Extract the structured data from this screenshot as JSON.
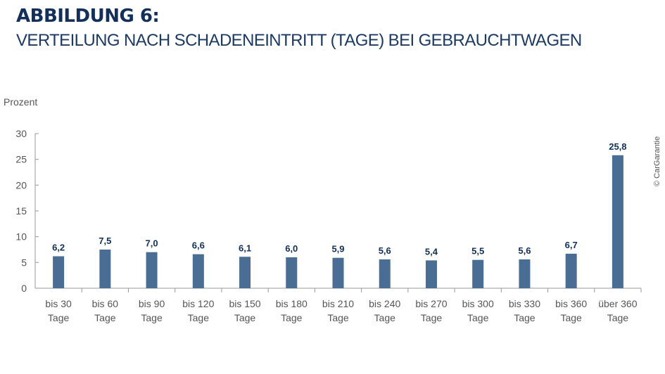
{
  "chart_data": {
    "type": "bar",
    "title": "ABBILDUNG 6:",
    "subtitle": "VERTEILUNG NACH SCHADENEINTRITT (TAGE) BEI GEBRAUCHTWAGEN",
    "ylabel": "Prozent",
    "xlabel": "",
    "ylim": [
      0,
      30
    ],
    "yticks": [
      0,
      5,
      10,
      15,
      20,
      25,
      30
    ],
    "grid": false,
    "categories": [
      [
        "bis 30",
        "Tage"
      ],
      [
        "bis 60",
        "Tage"
      ],
      [
        "bis 90",
        "Tage"
      ],
      [
        "bis 120",
        "Tage"
      ],
      [
        "bis 150",
        "Tage"
      ],
      [
        "bis 180",
        "Tage"
      ],
      [
        "bis 210",
        "Tage"
      ],
      [
        "bis 240",
        "Tage"
      ],
      [
        "bis 270",
        "Tage"
      ],
      [
        "bis 300",
        "Tage"
      ],
      [
        "bis 330",
        "Tage"
      ],
      [
        "bis 360",
        "Tage"
      ],
      [
        "über 360",
        "Tage"
      ]
    ],
    "values": [
      6.2,
      7.5,
      7.0,
      6.6,
      6.1,
      6.0,
      5.9,
      5.6,
      5.4,
      5.5,
      5.6,
      6.7,
      25.8
    ],
    "data_labels": [
      "6,2",
      "7,5",
      "7,0",
      "6,6",
      "6,1",
      "6,0",
      "5,9",
      "5,6",
      "5,4",
      "5,5",
      "5,6",
      "6,7",
      "25,8"
    ],
    "colors": {
      "bar": "#4a6d94",
      "label": "#12305a",
      "axis": "#999999",
      "tick_text": "#555555"
    }
  },
  "credit": "© CarGarantie"
}
